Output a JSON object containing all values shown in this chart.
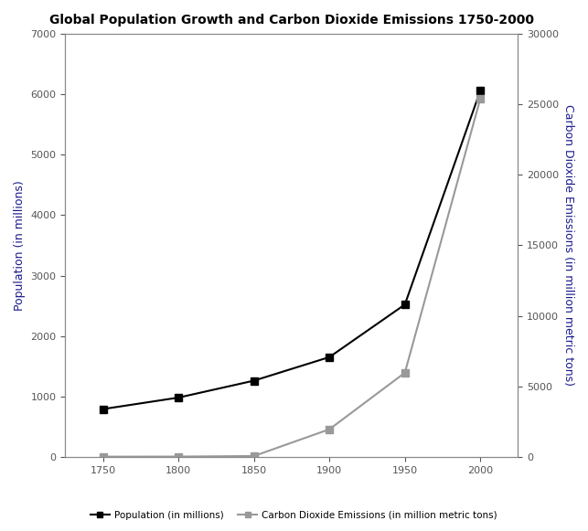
{
  "title": "Global Population Growth and Carbon Dioxide Emissions 1750-2000",
  "years": [
    1750,
    1800,
    1850,
    1900,
    1950,
    2000
  ],
  "population": [
    790,
    980,
    1260,
    1650,
    2520,
    6060
  ],
  "co2": [
    9,
    15,
    54,
    1950,
    5960,
    25400
  ],
  "pop_color": "#000000",
  "co2_color": "#999999",
  "ylabel_left": "Population (in millions)",
  "ylabel_right": "Carbon Dioxide Emissions (in million metric tons)",
  "ylim_left": [
    0,
    7000
  ],
  "ylim_right": [
    0,
    30000
  ],
  "yticks_left": [
    0,
    1000,
    2000,
    3000,
    4000,
    5000,
    6000,
    7000
  ],
  "yticks_right": [
    0,
    5000,
    10000,
    15000,
    20000,
    25000,
    30000
  ],
  "legend_pop": "Population (in millions)",
  "legend_co2": "Carbon Dioxide Emissions (in million metric tons)",
  "background_color": "#ffffff",
  "marker": "s",
  "markersize": 6,
  "linewidth": 1.5,
  "label_color": "#1a1a8c",
  "tick_color": "#555555",
  "axis_color": "#888888"
}
